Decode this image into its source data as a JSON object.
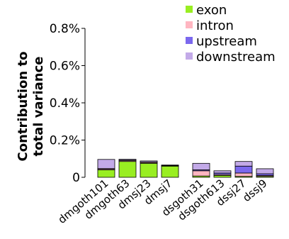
{
  "chart_data": {
    "type": "bar",
    "stacked": true,
    "ylabel": "Contribution to\ntotal variance",
    "ylim": [
      0,
      0.008
    ],
    "yticks": [
      0,
      0.002,
      0.004,
      0.006,
      0.008
    ],
    "ytick_labels": [
      "0",
      "0.2%",
      "0.4%",
      "0.6%",
      "0.8%"
    ],
    "categories": [
      "dmgoth101",
      "dmgoth63",
      "dmsj23",
      "dmsj7",
      "dsgoth31",
      "dsgoth613",
      "dssj27",
      "dssj9"
    ],
    "group_gap_after_index": 3,
    "legend_position": "top-right",
    "series": [
      {
        "name": "exon",
        "color": "#99ee22",
        "values": [
          0.0004,
          0.00085,
          0.00075,
          0.0006,
          7e-05,
          0.0001,
          5e-05,
          5e-05
        ]
      },
      {
        "name": "intron",
        "color": "#ffb6c1",
        "values": [
          5e-05,
          5e-05,
          5e-05,
          2e-05,
          0.00028,
          5e-05,
          0.00018,
          5e-05
        ]
      },
      {
        "name": "upstream",
        "color": "#7b68ee",
        "values": [
          2e-05,
          2e-05,
          2e-05,
          1e-05,
          5e-05,
          8e-05,
          0.00037,
          9e-05
        ]
      },
      {
        "name": "downstream",
        "color": "#c3aae8",
        "values": [
          0.00049,
          5e-05,
          6e-05,
          3e-05,
          0.00035,
          0.00012,
          0.00025,
          0.00027
        ]
      }
    ]
  }
}
